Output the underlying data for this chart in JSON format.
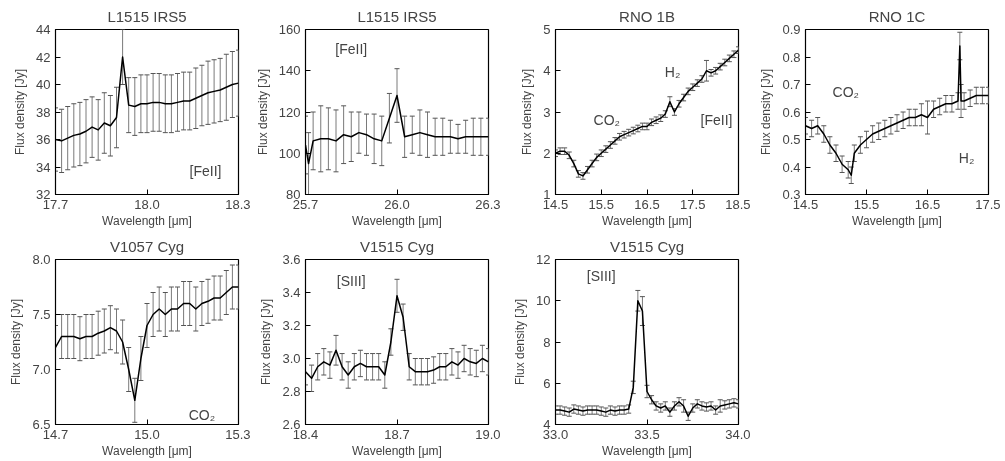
{
  "chart_data": [
    {
      "type": "line",
      "title": "L1515 IRS5",
      "xlabel": "Wavelength [μm]",
      "ylabel": "Flux density [Jy]",
      "xlim": [
        17.7,
        18.3
      ],
      "xticks": [
        17.7,
        {
          "value": 18.0,
          "label": "18.0"
        },
        18.3
      ],
      "ylim": [
        32,
        44
      ],
      "yticks": [
        32,
        34,
        36,
        38,
        40,
        42,
        44
      ],
      "x": [
        17.7,
        17.72,
        17.74,
        17.76,
        17.78,
        17.8,
        17.82,
        17.84,
        17.86,
        17.88,
        17.9,
        17.92,
        17.94,
        17.96,
        17.98,
        18.0,
        18.02,
        18.04,
        18.06,
        18.08,
        18.1,
        18.12,
        18.14,
        18.16,
        18.18,
        18.2,
        18.22,
        18.24,
        18.26,
        18.28,
        18.3
      ],
      "series": [
        {
          "color": "#000000",
          "values": [
            36.0,
            35.9,
            36.1,
            36.3,
            36.4,
            36.6,
            36.9,
            36.7,
            37.2,
            37.0,
            37.6,
            42.0,
            38.5,
            38.4,
            38.6,
            38.6,
            38.7,
            38.7,
            38.6,
            38.6,
            38.7,
            38.8,
            38.8,
            39.0,
            39.2,
            39.4,
            39.5,
            39.6,
            39.8,
            40.0,
            40.1
          ],
          "errors": [
            2.3,
            2.3,
            2.3,
            2.3,
            2.3,
            2.3,
            2.2,
            2.2,
            2.2,
            2.2,
            2.2,
            2.0,
            2.0,
            2.1,
            2.1,
            2.1,
            2.1,
            2.1,
            2.1,
            2.1,
            2.1,
            2.1,
            2.1,
            2.2,
            2.2,
            2.3,
            2.3,
            2.3,
            2.4,
            2.4,
            2.4
          ]
        }
      ],
      "annotations": [
        "[FeII]"
      ]
    },
    {
      "type": "line",
      "title": "L1515 IRS5",
      "xlabel": "Wavelength [μm]",
      "ylabel": "Flux density [Jy]",
      "xlim": [
        25.7,
        26.3
      ],
      "xticks": [
        25.7,
        {
          "value": 26.0,
          "label": "26.0"
        },
        26.3
      ],
      "ylim": [
        80,
        160
      ],
      "yticks": [
        80,
        100,
        120,
        140,
        160
      ],
      "x": [
        25.7,
        25.71,
        25.725,
        25.75,
        25.775,
        25.8,
        25.825,
        25.85,
        25.875,
        25.9,
        25.925,
        25.95,
        25.975,
        26.0,
        26.025,
        26.05,
        26.075,
        26.1,
        26.125,
        26.15,
        26.175,
        26.2,
        26.225,
        26.25,
        26.275,
        26.3
      ],
      "series": [
        {
          "color": "#000000",
          "values": [
            104,
            95,
            106,
            107,
            107,
            106,
            109,
            108,
            110,
            109,
            107,
            106,
            117,
            128,
            108,
            109,
            110,
            109,
            108,
            108,
            108,
            107,
            108,
            108,
            108,
            108
          ],
          "errors": [
            14,
            15,
            14,
            16,
            15,
            15,
            14,
            12,
            10,
            10,
            12,
            12,
            12,
            13,
            10,
            9,
            11,
            11,
            9,
            9,
            8,
            7,
            8,
            9,
            9,
            9
          ]
        }
      ],
      "annotations": [
        "[FeII]"
      ]
    },
    {
      "type": "line",
      "title": "RNO 1B",
      "xlabel": "Wavelength [μm]",
      "ylabel": "Flux density [Jy]",
      "xlim": [
        14.5,
        18.5
      ],
      "xticks": [
        14.5,
        15.5,
        16.5,
        17.5,
        18.5
      ],
      "ylim": [
        1,
        5
      ],
      "yticks": [
        1,
        2,
        3,
        4,
        5
      ],
      "x": [
        14.5,
        14.6,
        14.7,
        14.8,
        14.9,
        15.0,
        15.1,
        15.2,
        15.3,
        15.4,
        15.5,
        15.6,
        15.7,
        15.8,
        15.9,
        16.0,
        16.1,
        16.2,
        16.3,
        16.4,
        16.5,
        16.6,
        16.7,
        16.8,
        16.9,
        17.0,
        17.1,
        17.2,
        17.3,
        17.4,
        17.5,
        17.6,
        17.7,
        17.8,
        17.9,
        18.0,
        18.1,
        18.2,
        18.3,
        18.4,
        18.5
      ],
      "series": [
        {
          "color": "#000000",
          "values": [
            2.0,
            2.05,
            2.05,
            1.95,
            1.75,
            1.5,
            1.45,
            1.6,
            1.75,
            1.9,
            2.0,
            2.1,
            2.2,
            2.3,
            2.4,
            2.45,
            2.5,
            2.55,
            2.6,
            2.65,
            2.65,
            2.75,
            2.8,
            2.85,
            2.95,
            3.25,
            3.0,
            3.2,
            3.35,
            3.5,
            3.6,
            3.7,
            3.8,
            4.0,
            3.95,
            4.0,
            4.1,
            4.2,
            4.3,
            4.4,
            4.5
          ],
          "errors": [
            0.08,
            0.08,
            0.08,
            0.08,
            0.08,
            0.08,
            0.08,
            0.08,
            0.08,
            0.08,
            0.08,
            0.08,
            0.08,
            0.08,
            0.08,
            0.08,
            0.08,
            0.08,
            0.08,
            0.08,
            0.08,
            0.08,
            0.08,
            0.08,
            0.08,
            0.12,
            0.08,
            0.08,
            0.08,
            0.08,
            0.08,
            0.08,
            0.08,
            0.25,
            0.08,
            0.08,
            0.08,
            0.08,
            0.08,
            0.08,
            0.08
          ]
        }
      ],
      "annotations": [
        "CO₂",
        "H₂",
        "[FeII]"
      ]
    },
    {
      "type": "line",
      "title": "RNO 1C",
      "xlabel": "Wavelength [μm]",
      "ylabel": "Flux density [Jy]",
      "xlim": [
        14.5,
        17.5
      ],
      "xticks": [
        14.5,
        15.5,
        16.5,
        17.5
      ],
      "ylim": [
        0.3,
        0.9
      ],
      "yticks": [
        0.3,
        0.4,
        0.5,
        0.6,
        0.7,
        0.8,
        0.9
      ],
      "x": [
        14.5,
        14.6,
        14.7,
        14.8,
        14.9,
        15.0,
        15.1,
        15.2,
        15.25,
        15.3,
        15.4,
        15.5,
        15.6,
        15.7,
        15.8,
        15.9,
        16.0,
        16.1,
        16.2,
        16.3,
        16.4,
        16.5,
        16.6,
        16.7,
        16.8,
        16.9,
        17.0,
        17.03,
        17.05,
        17.1,
        17.2,
        17.3,
        17.4,
        17.5
      ],
      "series": [
        {
          "color": "#000000",
          "values": [
            0.55,
            0.54,
            0.55,
            0.52,
            0.48,
            0.45,
            0.41,
            0.39,
            0.37,
            0.45,
            0.48,
            0.5,
            0.52,
            0.53,
            0.54,
            0.55,
            0.56,
            0.57,
            0.58,
            0.58,
            0.59,
            0.58,
            0.61,
            0.62,
            0.63,
            0.63,
            0.64,
            0.84,
            0.64,
            0.64,
            0.65,
            0.66,
            0.66,
            0.66
          ],
          "errors": [
            0.03,
            0.03,
            0.03,
            0.03,
            0.03,
            0.03,
            0.03,
            0.03,
            0.03,
            0.03,
            0.03,
            0.03,
            0.03,
            0.03,
            0.03,
            0.03,
            0.03,
            0.03,
            0.03,
            0.03,
            0.04,
            0.06,
            0.03,
            0.03,
            0.03,
            0.03,
            0.03,
            0.05,
            0.06,
            0.03,
            0.03,
            0.03,
            0.03,
            0.03
          ]
        }
      ],
      "annotations": [
        "CO₂",
        "H₂"
      ]
    },
    {
      "type": "line",
      "title": "V1057 Cyg",
      "xlabel": "Wavelength [μm]",
      "ylabel": "Flux density [Jy]",
      "xlim": [
        14.7,
        15.3
      ],
      "xticks": [
        {
          "value": 14.7,
          "label": "14.7"
        },
        {
          "value": 15.0,
          "label": "15.0"
        },
        {
          "value": 15.3,
          "label": "15.3"
        }
      ],
      "ylim": [
        6.5,
        8.0
      ],
      "yticks": [
        {
          "value": 6.5,
          "label": "6.5"
        },
        {
          "value": 7.0,
          "label": "7.0"
        },
        {
          "value": 7.5,
          "label": "7.5"
        },
        {
          "value": 8.0,
          "label": "8.0"
        }
      ],
      "x": [
        14.7,
        14.72,
        14.74,
        14.76,
        14.78,
        14.8,
        14.82,
        14.84,
        14.86,
        14.88,
        14.9,
        14.92,
        14.94,
        14.96,
        14.98,
        15.0,
        15.02,
        15.04,
        15.06,
        15.08,
        15.1,
        15.12,
        15.14,
        15.16,
        15.18,
        15.2,
        15.22,
        15.24,
        15.26,
        15.28,
        15.3
      ],
      "series": [
        {
          "color": "#000000",
          "values": [
            7.2,
            7.3,
            7.3,
            7.3,
            7.28,
            7.3,
            7.3,
            7.33,
            7.35,
            7.38,
            7.35,
            7.25,
            7.0,
            6.72,
            7.1,
            7.4,
            7.5,
            7.55,
            7.5,
            7.55,
            7.55,
            7.6,
            7.6,
            7.55,
            7.6,
            7.62,
            7.65,
            7.65,
            7.7,
            7.75,
            7.75
          ],
          "errors": [
            0.2,
            0.2,
            0.2,
            0.2,
            0.2,
            0.2,
            0.2,
            0.2,
            0.2,
            0.2,
            0.2,
            0.2,
            0.2,
            0.2,
            0.2,
            0.2,
            0.2,
            0.2,
            0.2,
            0.2,
            0.2,
            0.2,
            0.2,
            0.2,
            0.2,
            0.2,
            0.2,
            0.2,
            0.2,
            0.2,
            0.2
          ]
        }
      ],
      "annotations": [
        "CO₂"
      ]
    },
    {
      "type": "line",
      "title": "V1515 Cyg",
      "xlabel": "Wavelength [μm]",
      "ylabel": "Flux density [Jy]",
      "xlim": [
        18.4,
        19.0
      ],
      "xticks": [
        18.4,
        18.7,
        {
          "value": 19.0,
          "label": "19.0"
        }
      ],
      "ylim": [
        2.6,
        3.6
      ],
      "yticks": [
        2.6,
        2.8,
        {
          "value": 3.0,
          "label": "3.0"
        },
        3.2,
        3.4,
        3.6
      ],
      "x": [
        18.4,
        18.42,
        18.44,
        18.46,
        18.48,
        18.5,
        18.52,
        18.54,
        18.56,
        18.58,
        18.6,
        18.62,
        18.64,
        18.66,
        18.68,
        18.7,
        18.72,
        18.74,
        18.76,
        18.78,
        18.8,
        18.82,
        18.84,
        18.86,
        18.88,
        18.9,
        18.92,
        18.94,
        18.96,
        18.98,
        19.0
      ],
      "series": [
        {
          "color": "#000000",
          "values": [
            2.92,
            2.88,
            2.95,
            2.98,
            2.96,
            3.05,
            2.95,
            2.9,
            2.95,
            2.97,
            2.95,
            2.95,
            2.95,
            2.9,
            3.1,
            3.38,
            3.25,
            2.95,
            2.92,
            2.92,
            2.92,
            2.93,
            2.95,
            2.95,
            2.98,
            2.96,
            3.0,
            2.98,
            2.97,
            3.0,
            2.98
          ],
          "errors": [
            0.08,
            0.08,
            0.08,
            0.08,
            0.08,
            0.09,
            0.08,
            0.08,
            0.08,
            0.08,
            0.08,
            0.08,
            0.08,
            0.08,
            0.08,
            0.1,
            0.08,
            0.08,
            0.08,
            0.08,
            0.08,
            0.08,
            0.08,
            0.08,
            0.08,
            0.08,
            0.08,
            0.08,
            0.08,
            0.08,
            0.08
          ]
        }
      ],
      "annotations": [
        "[SIII]"
      ]
    },
    {
      "type": "line",
      "title": "V1515 Cyg",
      "xlabel": "Wavelength [μm]",
      "ylabel": "Flux density [Jy]",
      "xlim": [
        33.0,
        34.0
      ],
      "xticks": [
        {
          "value": 33.0,
          "label": "33.0"
        },
        33.5,
        {
          "value": 34.0,
          "label": "34.0"
        }
      ],
      "ylim": [
        4,
        12
      ],
      "yticks": [
        4,
        6,
        8,
        10,
        12
      ],
      "x": [
        33.0,
        33.025,
        33.05,
        33.075,
        33.1,
        33.125,
        33.15,
        33.175,
        33.2,
        33.225,
        33.25,
        33.275,
        33.3,
        33.325,
        33.35,
        33.375,
        33.4,
        33.425,
        33.45,
        33.475,
        33.5,
        33.525,
        33.55,
        33.575,
        33.6,
        33.625,
        33.65,
        33.675,
        33.7,
        33.725,
        33.75,
        33.775,
        33.8,
        33.825,
        33.85,
        33.875,
        33.9,
        33.925,
        33.95,
        33.975,
        34.0
      ],
      "series": [
        {
          "color": "#000000",
          "values": [
            4.7,
            4.7,
            4.65,
            4.6,
            4.75,
            4.7,
            4.65,
            4.7,
            4.7,
            4.7,
            4.65,
            4.6,
            4.7,
            4.65,
            4.7,
            4.7,
            4.75,
            5.8,
            10.0,
            9.5,
            5.6,
            5.2,
            4.9,
            4.8,
            4.9,
            4.6,
            4.9,
            5.1,
            4.9,
            4.4,
            4.8,
            5.0,
            4.9,
            4.85,
            4.9,
            4.7,
            4.9,
            4.95,
            5.0,
            5.05,
            5.0
          ],
          "errors": [
            0.2,
            0.2,
            0.2,
            0.2,
            0.2,
            0.2,
            0.2,
            0.2,
            0.2,
            0.2,
            0.2,
            0.2,
            0.2,
            0.2,
            0.2,
            0.2,
            0.2,
            0.3,
            0.5,
            0.7,
            0.3,
            0.2,
            0.2,
            0.2,
            0.2,
            0.2,
            0.2,
            0.2,
            0.3,
            0.2,
            0.2,
            0.2,
            0.2,
            0.2,
            0.2,
            0.2,
            0.3,
            0.2,
            0.2,
            0.2,
            0.2
          ]
        }
      ],
      "annotations": [
        "[SIII]"
      ]
    }
  ]
}
